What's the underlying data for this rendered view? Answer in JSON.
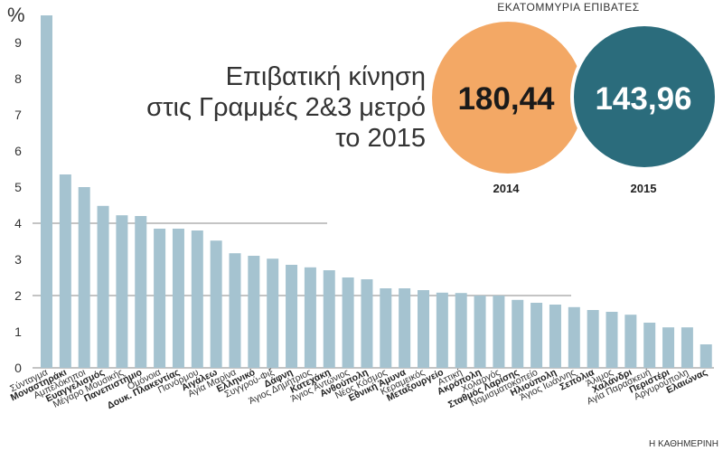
{
  "chart_data": {
    "type": "bar",
    "title_lines": [
      "Επιβατική κίνηση",
      "στις Γραμμές 2&3 μετρό",
      "το 2015"
    ],
    "ylabel": "%",
    "ylim": [
      0,
      10
    ],
    "yticks": [
      "0",
      "1",
      "2",
      "3",
      "4",
      "5",
      "6",
      "7",
      "8",
      "9"
    ],
    "categories": [
      "Σύνταγμα",
      "Μοναστηράκι",
      "Αμπελόκηποι",
      "Ευαγγελισμός",
      "Μέγαρο Μουσικής",
      "Πανεπιστήμιο",
      "Ομόνοια",
      "Δουκ. Πλακεντίας",
      "Πανόρμου",
      "Αιγάλεω",
      "Αγία Μαρίνα",
      "Ελληνικό",
      "Συγγρού-Φιξ",
      "Δάφνη",
      "Άγιος Δημήτριος",
      "Κατεχάκη",
      "Άγιος Αντώνιος",
      "Ανθούπολη",
      "Νέος Κόσμος",
      "Εθνική Άμυνα",
      "Κεραμεικός",
      "Μεταξουργείο",
      "Αττική",
      "Ακρόπολη",
      "Χολαργός",
      "Σταθμός Λαρίσης",
      "Νομισματοκοπείο",
      "Ηλιούπολη",
      "Άγιος Ιωάννης",
      "Σεπόλια",
      "Άλιμος",
      "Χαλάνδρι",
      "Αγία Παρασκευή",
      "Περιστέρι",
      "Αργυρούπολη",
      "Ελαιώνας"
    ],
    "bold_categories": [
      "Μοναστηράκι",
      "Ευαγγελισμός",
      "Πανεπιστήμιο",
      "Δουκ. Πλακεντίας",
      "Αιγάλεω",
      "Ελληνικό",
      "Δάφνη",
      "Κατεχάκη",
      "Ανθούπολη",
      "Εθνική Άμυνα",
      "Μεταξουργείο",
      "Ακρόπολη",
      "Σταθμός Λαρίσης",
      "Ηλιούπολη",
      "Σεπόλια",
      "Χαλάνδρι",
      "Περιστέρι",
      "Ελαιώνας"
    ],
    "values": [
      9.75,
      5.35,
      5.0,
      4.48,
      4.22,
      4.2,
      3.85,
      3.85,
      3.8,
      3.52,
      3.17,
      3.1,
      3.02,
      2.85,
      2.78,
      2.7,
      2.5,
      2.45,
      2.2,
      2.2,
      2.15,
      2.08,
      2.07,
      2.0,
      2.0,
      1.88,
      1.8,
      1.75,
      1.68,
      1.6,
      1.55,
      1.47,
      1.25,
      1.12,
      1.12,
      0.65
    ],
    "reference_lines": [
      4,
      2
    ],
    "bar_color": "#a5c3d0",
    "grid": false
  },
  "summary": {
    "heading": "ΕΚΑΤΟΜΜΥΡΙΑ ΕΠΙΒΑΤΕΣ",
    "bubbles": [
      {
        "year": "2014",
        "value": "180,44",
        "color": "#f3a865",
        "text_color": "#1a1a1a"
      },
      {
        "year": "2015",
        "value": "143,96",
        "color": "#2b6c7c",
        "text_color": "#ffffff"
      }
    ]
  },
  "source": "Η ΚΑΘΗΜΕΡΙΝΗ"
}
